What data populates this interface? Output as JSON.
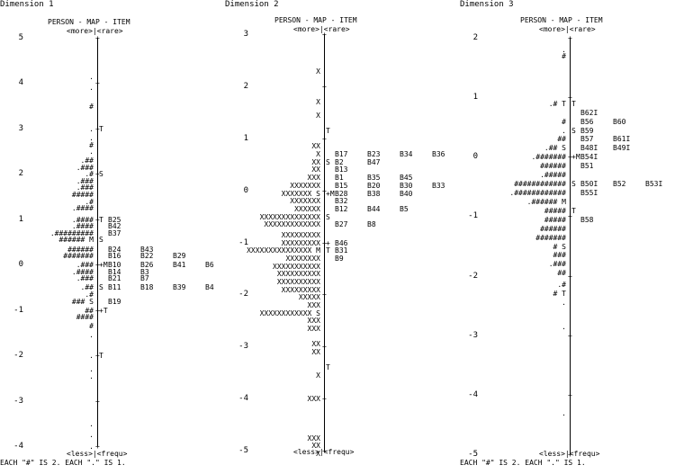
{
  "panels": [
    {
      "title": "Dimension 1",
      "header": "PERSON - MAP - ITEM",
      "more_rare": "<more>|<rare>",
      "less_frequ": "<less>|<frequ>",
      "footer": "EACH \"#\" IS 2. EACH \".\" IS 1."
    },
    {
      "title": "Dimension 2",
      "header": "PERSON - MAP - ITEM",
      "more_rare": "<more>|<rare>",
      "less_frequ": "<less>|<frequ>",
      "footer": ""
    },
    {
      "title": "Dimension 3",
      "header": "PERSON - MAP - ITEM",
      "more_rare": "<more>|<rare>",
      "less_frequ": "<less>|<frequ>",
      "footer": "EACH \"#\" IS 2. EACH \".\" IS 1."
    }
  ],
  "chart_data": [
    {
      "type": "table",
      "title": "Dimension 1",
      "ylim": [
        -4,
        5
      ],
      "ticks": [
        5,
        4,
        3,
        2,
        1,
        0,
        -1,
        -2,
        -3,
        -4
      ],
      "rows": [
        {
          "y": 4.15,
          "p": ".",
          "m": "",
          "i": []
        },
        {
          "y": 3.9,
          "p": ".",
          "m": "",
          "i": []
        },
        {
          "y": 3.5,
          "p": "#",
          "m": "",
          "i": []
        },
        {
          "y": 3.0,
          "p": ".",
          "m": "T",
          "i": []
        },
        {
          "y": 2.8,
          "p": ".",
          "m": "",
          "i": []
        },
        {
          "y": 2.65,
          "p": "#",
          "m": "",
          "i": []
        },
        {
          "y": 2.5,
          "p": ".",
          "m": "",
          "i": []
        },
        {
          "y": 2.3,
          "p": ".##",
          "m": "",
          "i": []
        },
        {
          "y": 2.15,
          "p": ".###",
          "m": "",
          "i": []
        },
        {
          "y": 2.0,
          "p": ".#",
          "m": "S",
          "i": []
        },
        {
          "y": 1.85,
          "p": ".###",
          "m": "",
          "i": []
        },
        {
          "y": 1.7,
          "p": ".###",
          "m": "",
          "i": []
        },
        {
          "y": 1.55,
          "p": "#####",
          "m": "",
          "i": []
        },
        {
          "y": 1.4,
          "p": ".#",
          "m": "",
          "i": []
        },
        {
          "y": 1.25,
          "p": ".####",
          "m": "",
          "i": []
        },
        {
          "y": 1.0,
          "p": ".####",
          "m": "T",
          "i": [
            "B25"
          ]
        },
        {
          "y": 0.85,
          "p": ".####",
          "m": "",
          "i": [
            "B42"
          ]
        },
        {
          "y": 0.7,
          "p": ".#########",
          "m": "",
          "i": [
            "B37"
          ]
        },
        {
          "y": 0.55,
          "p": "###### M",
          "m": "S",
          "i": []
        },
        {
          "y": 0.35,
          "p": "######",
          "m": "",
          "i": [
            "B24",
            "B43"
          ]
        },
        {
          "y": 0.2,
          "p": "#######",
          "m": "",
          "i": [
            "B16",
            "B22",
            "B29"
          ]
        },
        {
          "y": 0.0,
          "p": ".###",
          "m": "+M",
          "i": [
            "B10",
            "B26",
            "B41",
            "B6"
          ]
        },
        {
          "y": -0.15,
          "p": ".####",
          "m": "",
          "i": [
            "B14",
            "B3"
          ]
        },
        {
          "y": -0.3,
          "p": ".###",
          "m": "",
          "i": [
            "B21",
            "B7"
          ]
        },
        {
          "y": -0.5,
          "p": ".##",
          "m": "S",
          "i": [
            "B11",
            "B18",
            "B39",
            "B4"
          ]
        },
        {
          "y": -0.65,
          "p": ".#",
          "m": "",
          "i": []
        },
        {
          "y": -0.8,
          "p": "### S",
          "m": "",
          "i": [
            "B19"
          ]
        },
        {
          "y": -1.0,
          "p": "##",
          "m": "+T",
          "i": []
        },
        {
          "y": -1.15,
          "p": "####",
          "m": "",
          "i": []
        },
        {
          "y": -1.35,
          "p": "#",
          "m": "",
          "i": []
        },
        {
          "y": -1.55,
          "p": ".",
          "m": "",
          "i": []
        },
        {
          "y": -2.0,
          "p": ".",
          "m": "T",
          "i": []
        },
        {
          "y": -2.3,
          "p": ".",
          "m": "",
          "i": []
        },
        {
          "y": -2.45,
          "p": ".",
          "m": "",
          "i": []
        },
        {
          "y": -3.5,
          "p": ".",
          "m": "",
          "i": []
        },
        {
          "y": -3.75,
          "p": ".",
          "m": "",
          "i": []
        },
        {
          "y": -4.0,
          "p": ".",
          "m": "",
          "i": []
        }
      ]
    },
    {
      "type": "table",
      "title": "Dimension 2",
      "ylim": [
        -5,
        3
      ],
      "ticks": [
        3,
        2,
        1,
        0,
        -1,
        -2,
        -3,
        -4,
        -5
      ],
      "rows": [
        {
          "y": 2.3,
          "p": "X",
          "m": "",
          "i": []
        },
        {
          "y": 1.7,
          "p": "X",
          "m": "",
          "i": []
        },
        {
          "y": 1.45,
          "p": "X",
          "m": "",
          "i": []
        },
        {
          "y": 1.15,
          "p": "",
          "m": "T",
          "i": []
        },
        {
          "y": 0.85,
          "p": "XX",
          "m": "",
          "i": []
        },
        {
          "y": 0.7,
          "p": "X",
          "m": "",
          "i": [
            "B17",
            "B23",
            "B34",
            "B36"
          ]
        },
        {
          "y": 0.55,
          "p": "XX",
          "m": "S",
          "i": [
            "B2",
            "B47"
          ]
        },
        {
          "y": 0.4,
          "p": "XX",
          "m": "",
          "i": [
            "B13"
          ]
        },
        {
          "y": 0.25,
          "p": "XXX",
          "m": "",
          "i": [
            "B1",
            "B35",
            "B45"
          ]
        },
        {
          "y": 0.1,
          "p": "XXXXXXX",
          "m": "",
          "i": [
            "B15",
            "B20",
            "B30",
            "B33"
          ]
        },
        {
          "y": -0.05,
          "p": "XXXXXXX S",
          "m": "+M",
          "i": [
            "B28",
            "B38",
            "B40"
          ]
        },
        {
          "y": -0.2,
          "p": "XXXXXXX",
          "m": "",
          "i": [
            "B32"
          ]
        },
        {
          "y": -0.35,
          "p": "XXXXXX",
          "m": "",
          "i": [
            "B12",
            "B44",
            "B5"
          ]
        },
        {
          "y": -0.5,
          "p": "XXXXXXXXXXXXXX",
          "m": "S",
          "i": []
        },
        {
          "y": -0.65,
          "p": "XXXXXXXXXXXXX",
          "m": "",
          "i": [
            "B27",
            "B8"
          ]
        },
        {
          "y": -0.85,
          "p": "XXXXXXXXX",
          "m": "",
          "i": []
        },
        {
          "y": -1.0,
          "p": "XXXXXXXXX",
          "m": "+",
          "i": [
            "B46"
          ]
        },
        {
          "y": -1.15,
          "p": "XXXXXXXXXXXXXXX M",
          "m": "T",
          "i": [
            "B31"
          ]
        },
        {
          "y": -1.3,
          "p": "XXXXXXXX",
          "m": "",
          "i": [
            "B9"
          ]
        },
        {
          "y": -1.45,
          "p": "XXXXXXXXXXX",
          "m": "",
          "i": []
        },
        {
          "y": -1.6,
          "p": "XXXXXXXXXX",
          "m": "",
          "i": []
        },
        {
          "y": -1.75,
          "p": "XXXXXXXXXX",
          "m": "",
          "i": []
        },
        {
          "y": -1.9,
          "p": "XXXXXXXXX",
          "m": "",
          "i": []
        },
        {
          "y": -2.05,
          "p": "XXXXX",
          "m": "",
          "i": []
        },
        {
          "y": -2.2,
          "p": "XXX",
          "m": "",
          "i": []
        },
        {
          "y": -2.35,
          "p": "XXXXXXXXXXXX S",
          "m": "",
          "i": []
        },
        {
          "y": -2.5,
          "p": "XXX",
          "m": "",
          "i": []
        },
        {
          "y": -2.65,
          "p": "XXX",
          "m": "",
          "i": []
        },
        {
          "y": -2.95,
          "p": "XX",
          "m": "",
          "i": []
        },
        {
          "y": -3.1,
          "p": "XX",
          "m": "",
          "i": []
        },
        {
          "y": -3.4,
          "p": "",
          "m": "T",
          "i": []
        },
        {
          "y": -3.55,
          "p": "X",
          "m": "",
          "i": []
        },
        {
          "y": -4.0,
          "p": "XXX",
          "m": "",
          "i": []
        },
        {
          "y": -4.75,
          "p": "XXX",
          "m": "",
          "i": []
        },
        {
          "y": -4.9,
          "p": "XX",
          "m": "",
          "i": []
        },
        {
          "y": -5.05,
          "p": "X",
          "m": "",
          "i": []
        }
      ]
    },
    {
      "type": "table",
      "title": "Dimension 3",
      "ylim": [
        -5,
        2
      ],
      "ticks": [
        2,
        1,
        0,
        -1,
        -2,
        -3,
        -4,
        -5
      ],
      "rows": [
        {
          "y": 1.8,
          "p": ".",
          "m": "",
          "i": []
        },
        {
          "y": 1.7,
          "p": "#",
          "m": "",
          "i": []
        },
        {
          "y": 0.9,
          "p": ".# T",
          "m": "T",
          "i": []
        },
        {
          "y": 0.75,
          "p": "",
          "m": "",
          "i": [
            "B62I"
          ]
        },
        {
          "y": 0.6,
          "p": "#",
          "m": "",
          "i": [
            "B56",
            "B60"
          ]
        },
        {
          "y": 0.45,
          "p": ".",
          "m": "S",
          "i": [
            "B59"
          ]
        },
        {
          "y": 0.3,
          "p": "##",
          "m": "",
          "i": [
            "B57",
            "B61I"
          ]
        },
        {
          "y": 0.15,
          "p": ".## S",
          "m": "",
          "i": [
            "B48I",
            "B49I"
          ]
        },
        {
          "y": 0.0,
          "p": ".#######",
          "m": "+M",
          "i": [
            "B54I"
          ]
        },
        {
          "y": -0.15,
          "p": "######",
          "m": "",
          "i": [
            "B51"
          ]
        },
        {
          "y": -0.3,
          "p": ".#####",
          "m": "",
          "i": []
        },
        {
          "y": -0.45,
          "p": "############",
          "m": "S",
          "i": [
            "B50I",
            "B52",
            "B53I"
          ]
        },
        {
          "y": -0.6,
          "p": ".############",
          "m": "",
          "i": [
            "B55I"
          ]
        },
        {
          "y": -0.75,
          "p": ".###### M",
          "m": "",
          "i": []
        },
        {
          "y": -0.9,
          "p": "#####",
          "m": "T",
          "i": []
        },
        {
          "y": -1.05,
          "p": "#####",
          "m": "",
          "i": [
            "B58"
          ]
        },
        {
          "y": -1.2,
          "p": "######",
          "m": "",
          "i": []
        },
        {
          "y": -1.35,
          "p": "#######",
          "m": "",
          "i": []
        },
        {
          "y": -1.5,
          "p": "# S",
          "m": "",
          "i": []
        },
        {
          "y": -1.65,
          "p": "###",
          "m": "",
          "i": []
        },
        {
          "y": -1.8,
          "p": ".###",
          "m": "",
          "i": []
        },
        {
          "y": -1.95,
          "p": "##",
          "m": "",
          "i": []
        },
        {
          "y": -2.15,
          "p": ".#",
          "m": "",
          "i": []
        },
        {
          "y": -2.3,
          "p": "# T",
          "m": "",
          "i": []
        },
        {
          "y": -2.45,
          "p": ".",
          "m": "",
          "i": []
        },
        {
          "y": -2.85,
          "p": ".",
          "m": "",
          "i": []
        },
        {
          "y": -4.3,
          "p": ".",
          "m": "",
          "i": []
        }
      ]
    }
  ]
}
